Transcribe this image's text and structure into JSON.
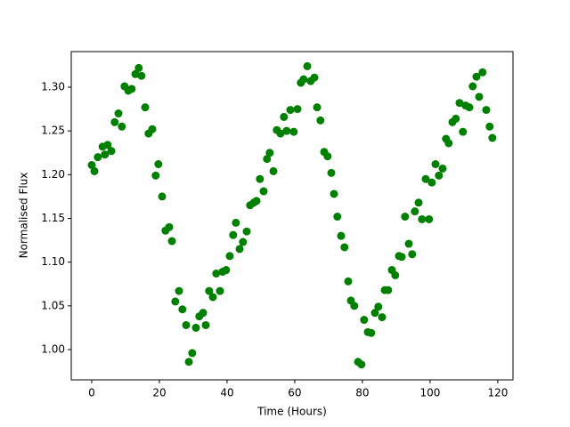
{
  "chart_data": {
    "type": "scatter",
    "xlabel": "Time (Hours)",
    "ylabel": "Normalised Flux",
    "series": [
      {
        "color": "#008000",
        "x": [
          0,
          0.8,
          1.8,
          3.2,
          3.9,
          4.7,
          5.8,
          6.8,
          7.9,
          8.9,
          9.7,
          10.8,
          11.8,
          12.9,
          13.9,
          14.7,
          15.8,
          16.8,
          17.9,
          18.9,
          19.7,
          20.8,
          21.8,
          22.9,
          23.7,
          24.7,
          25.8,
          26.8,
          27.9,
          28.7,
          29.7,
          30.8,
          31.8,
          32.9,
          33.7,
          34.7,
          35.8,
          36.8,
          37.9,
          38.7,
          39.7,
          40.8,
          41.8,
          42.6,
          43.7,
          44.7,
          45.8,
          46.8,
          47.9,
          48.7,
          49.7,
          50.8,
          51.8,
          52.6,
          53.7,
          54.7,
          55.8,
          56.8,
          57.6,
          58.7,
          59.7,
          60.8,
          61.8,
          62.6,
          63.7,
          64.7,
          65.8,
          66.6,
          67.6,
          68.7,
          69.7,
          70.8,
          71.6,
          72.6,
          73.7,
          74.7,
          75.8,
          76.6,
          77.6,
          78.7,
          79.7,
          80.5,
          81.6,
          82.6,
          83.7,
          84.7,
          85.8,
          86.6,
          87.6,
          88.7,
          89.7,
          90.8,
          91.6,
          92.6,
          93.7,
          94.7,
          95.5,
          96.6,
          97.6,
          98.7,
          99.7,
          100.5,
          101.6,
          102.6,
          103.7,
          104.7,
          105.5,
          106.6,
          107.6,
          108.7,
          109.7,
          110.5,
          111.6,
          112.6,
          113.7,
          114.5,
          115.5,
          116.6,
          117.6,
          118.4
        ],
        "values": [
          1.211,
          1.204,
          1.22,
          1.232,
          1.223,
          1.234,
          1.227,
          1.26,
          1.27,
          1.255,
          1.301,
          1.296,
          1.298,
          1.315,
          1.322,
          1.313,
          1.277,
          1.247,
          1.252,
          1.199,
          1.212,
          1.175,
          1.136,
          1.14,
          1.124,
          1.055,
          1.067,
          1.046,
          1.028,
          0.986,
          0.996,
          1.025,
          1.038,
          1.042,
          1.028,
          1.067,
          1.06,
          1.087,
          1.067,
          1.089,
          1.091,
          1.107,
          1.131,
          1.145,
          1.115,
          1.123,
          1.135,
          1.165,
          1.168,
          1.17,
          1.195,
          1.181,
          1.218,
          1.225,
          1.204,
          1.251,
          1.247,
          1.266,
          1.25,
          1.274,
          1.249,
          1.275,
          1.305,
          1.309,
          1.324,
          1.307,
          1.311,
          1.277,
          1.262,
          1.226,
          1.221,
          1.202,
          1.178,
          1.152,
          1.13,
          1.117,
          1.078,
          1.056,
          1.05,
          0.986,
          0.983,
          1.034,
          1.02,
          1.019,
          1.042,
          1.049,
          1.037,
          1.068,
          1.068,
          1.091,
          1.085,
          1.107,
          1.106,
          1.152,
          1.121,
          1.109,
          1.158,
          1.168,
          1.149,
          1.195,
          1.149,
          1.191,
          1.212,
          1.199,
          1.207,
          1.241,
          1.236,
          1.26,
          1.264,
          1.282,
          1.249,
          1.279,
          1.277,
          1.301,
          1.312,
          1.289,
          1.317,
          1.274,
          1.255,
          1.242
        ]
      }
    ],
    "xlim": [
      -6.05,
      124.5
    ],
    "ylim": [
      0.9654,
      1.3407
    ],
    "xticks": [
      0,
      20,
      40,
      60,
      80,
      100,
      120
    ],
    "yticks": [
      {
        "value": 1.0,
        "label": "1.00"
      },
      {
        "value": 1.05,
        "label": "1.05"
      },
      {
        "value": 1.1,
        "label": "1.10"
      },
      {
        "value": 1.15,
        "label": "1.15"
      },
      {
        "value": 1.2,
        "label": "1.20"
      },
      {
        "value": 1.25,
        "label": "1.25"
      },
      {
        "value": 1.3,
        "label": "1.30"
      }
    ]
  }
}
